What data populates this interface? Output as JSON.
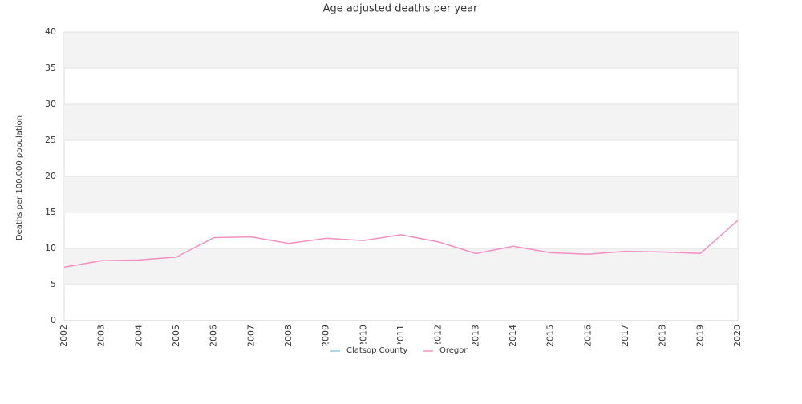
{
  "chart_data": {
    "type": "line",
    "title": "Age adjusted deaths per year",
    "y_label": "Deaths per 100,000 population",
    "categories": [
      "2002",
      "2003",
      "2004",
      "2005",
      "2006",
      "2007",
      "2008",
      "2009",
      "2010",
      "2011",
      "2012",
      "2013",
      "2014",
      "2015",
      "2016",
      "2017",
      "2018",
      "2019",
      "2020"
    ],
    "series": [
      {
        "name": "Clatsop County",
        "color": "#8ecae6",
        "values": [
          null,
          null,
          null,
          null,
          null,
          null,
          null,
          null,
          null,
          null,
          null,
          null,
          null,
          null,
          null,
          null,
          null,
          null,
          null
        ]
      },
      {
        "name": "Oregon",
        "color": "#f48fc1",
        "values": [
          7.4,
          8.3,
          8.4,
          8.8,
          11.5,
          11.6,
          10.7,
          11.4,
          11.1,
          11.9,
          10.9,
          9.3,
          10.3,
          9.4,
          9.2,
          9.6,
          9.5,
          9.3,
          13.9
        ]
      }
    ],
    "ylim": [
      0,
      40
    ],
    "yticks": [
      0,
      5,
      10,
      15,
      20,
      25,
      30,
      35,
      40
    ],
    "grid": true,
    "legend": "bottom"
  }
}
